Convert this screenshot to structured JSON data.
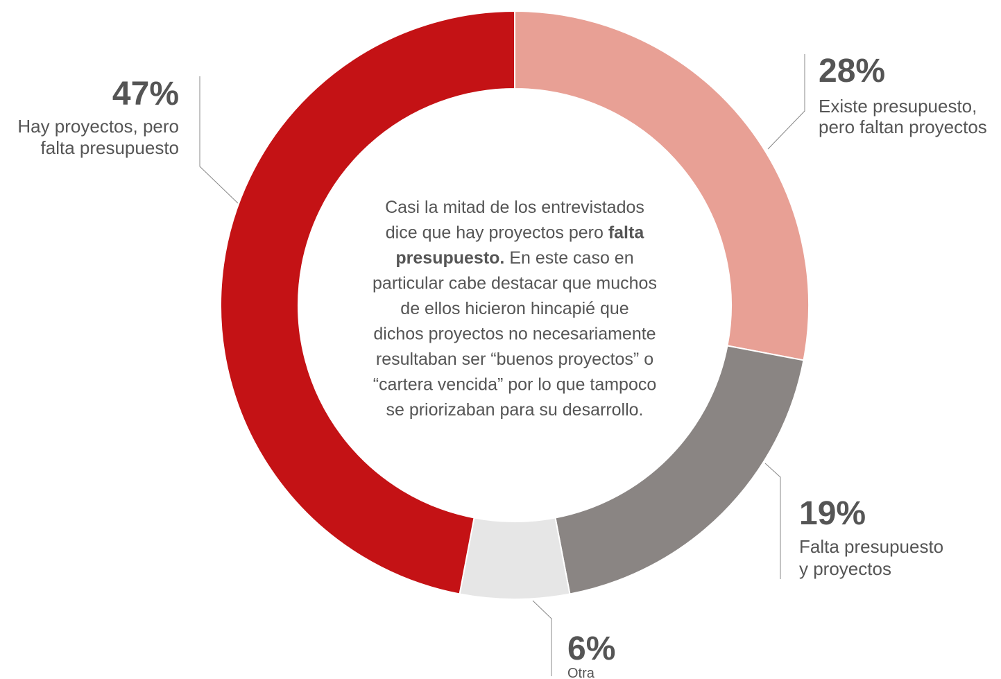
{
  "chart_data": {
    "type": "donut",
    "values": [
      28,
      19,
      6,
      47
    ],
    "value_labels": [
      "28%",
      "19%",
      "6%",
      "47%"
    ],
    "labels": [
      [
        "Existe presupuesto,",
        "pero faltan proyectos"
      ],
      [
        "Falta presupuesto",
        "y proyectos"
      ],
      [
        "Otra"
      ],
      [
        "Hay proyectos, pero",
        "falta presupuesto"
      ]
    ],
    "colors": [
      "#e8a095",
      "#8a8583",
      "#e6e6e6",
      "#c41215"
    ],
    "annotation": [
      [
        {
          "text": "Casi la mitad de los entrevistados"
        }
      ],
      [
        {
          "text": "dice que hay proyectos pero "
        },
        {
          "text": "falta",
          "bold": true
        }
      ],
      [
        {
          "text": "presupuesto.",
          "bold": true
        },
        {
          "text": " En este caso en"
        }
      ],
      [
        {
          "text": "particular cabe destacar que muchos"
        }
      ],
      [
        {
          "text": "de ellos hicieron hincapié que"
        }
      ],
      [
        {
          "text": "dichos proyectos no necesariamente"
        }
      ],
      [
        {
          "text": "resultaban ser “buenos proyectos” o"
        }
      ],
      [
        {
          "text": "“cartera vencida” por lo que tampoco"
        }
      ],
      [
        {
          "text": "se priorizaban para su desarrollo."
        }
      ]
    ]
  }
}
